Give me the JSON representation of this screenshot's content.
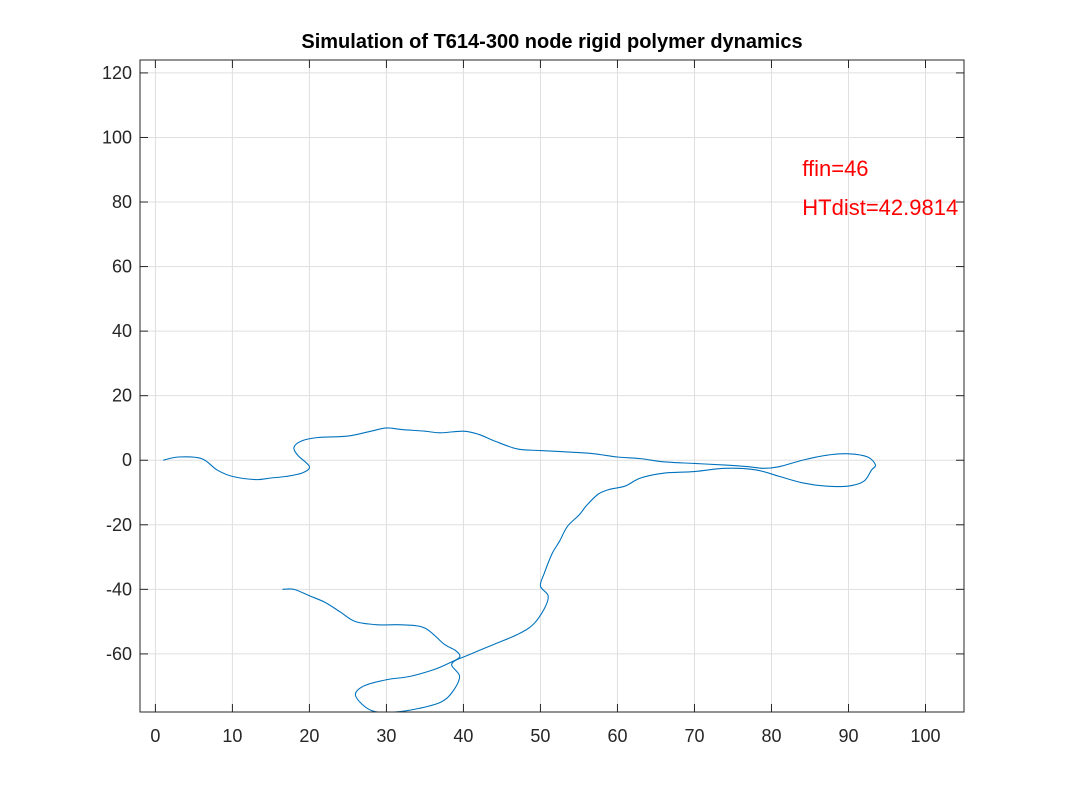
{
  "chart_data": {
    "type": "line",
    "title": "Simulation of T614-300 node rigid polymer dynamics",
    "xlabel": "",
    "ylabel": "",
    "xlim": [
      -2,
      105
    ],
    "ylim": [
      -78,
      124
    ],
    "xticks": [
      0,
      10,
      20,
      30,
      40,
      50,
      60,
      70,
      80,
      90,
      100
    ],
    "yticks": [
      -60,
      -40,
      -20,
      0,
      20,
      40,
      60,
      80,
      100,
      120
    ],
    "grid": true,
    "line_color": "#0072bd",
    "annotation_color": "#ff0000",
    "annotations": [
      {
        "text": "ffin=46",
        "x": 84,
        "y": 88
      },
      {
        "text": "HTdist=42.9814",
        "x": 84,
        "y": 76
      }
    ],
    "series": [
      {
        "x": [
          1,
          3,
          6,
          8,
          10,
          13,
          15,
          17,
          19,
          20,
          18.5,
          18,
          19,
          21,
          25,
          28,
          30,
          32,
          35,
          37,
          40,
          42,
          44,
          47,
          50,
          54,
          57,
          60,
          63,
          66,
          70,
          74,
          77,
          79,
          81,
          84,
          87,
          90,
          92.5,
          93.5,
          93,
          92,
          90,
          87,
          84,
          81,
          78,
          74,
          70,
          66,
          63,
          61,
          59,
          57.5,
          56,
          55,
          53.5,
          52.5,
          51.5,
          50.5,
          50,
          51,
          50.5,
          49,
          47,
          44,
          41,
          38.5,
          39.5,
          38.5,
          37,
          34,
          31,
          28,
          26,
          27,
          30,
          33,
          36,
          38,
          39.5,
          39,
          37.5,
          35,
          32,
          29,
          26,
          24,
          22,
          20,
          18,
          16.5
        ],
        "y": [
          0,
          1,
          0.5,
          -3,
          -5,
          -6,
          -5.5,
          -5,
          -4,
          -2,
          1.5,
          4,
          6,
          7,
          7.5,
          9,
          10,
          9.5,
          9,
          8.5,
          9,
          8,
          6,
          3.5,
          3,
          2.5,
          2,
          1,
          0.5,
          -0.5,
          -1,
          -1.5,
          -2,
          -2.5,
          -2,
          0,
          1.5,
          2,
          1,
          -1.5,
          -3,
          -6.5,
          -8,
          -8,
          -7,
          -5,
          -3,
          -2.5,
          -3.5,
          -4,
          -5.5,
          -8,
          -9,
          -10.5,
          -14,
          -17,
          -20.5,
          -25,
          -29,
          -35,
          -39,
          -42,
          -46,
          -51,
          -54,
          -57,
          -60,
          -63,
          -67,
          -72,
          -75,
          -77,
          -78,
          -77.5,
          -73,
          -70,
          -68,
          -67,
          -65,
          -63,
          -61,
          -59,
          -57,
          -52,
          -51,
          -51,
          -50,
          -47,
          -44,
          -42,
          -40,
          -40
        ]
      }
    ]
  }
}
